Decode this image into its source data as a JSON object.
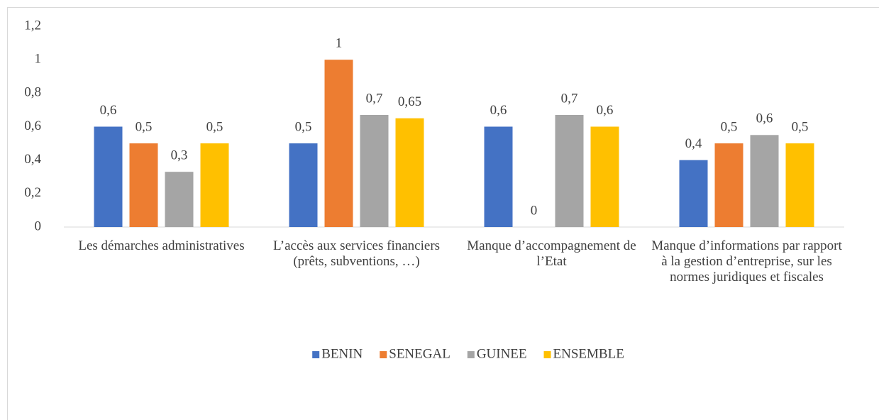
{
  "chart_data": {
    "type": "bar",
    "categories": [
      "Les démarches administratives",
      "L’accès aux services financiers (prêts, subventions, …)",
      "Manque d’accompagnement de l’Etat",
      "Manque d’informations par rapport à la gestion d’entreprise, sur les normes juridiques et fiscales"
    ],
    "series": [
      {
        "name": "BENIN",
        "color": "#4472c4",
        "values": [
          0.6,
          0.5,
          0.6,
          0.4
        ],
        "value_labels": [
          "0,6",
          "0,5",
          "0,6",
          "0,4"
        ]
      },
      {
        "name": "SENEGAL",
        "color": "#ed7d31",
        "values": [
          0.5,
          1,
          0,
          0.5
        ],
        "value_labels": [
          "0,5",
          "1",
          "0",
          "0,5"
        ]
      },
      {
        "name": "GUINEE",
        "color": "#a5a5a5",
        "values": [
          0.33,
          0.67,
          0.67,
          0.55
        ],
        "value_labels": [
          "0,3",
          "0,7",
          "0,7",
          "0,6"
        ]
      },
      {
        "name": "ENSEMBLE",
        "color": "#ffc000",
        "values": [
          0.5,
          0.65,
          0.6,
          0.5
        ],
        "value_labels": [
          "0,5",
          "0,65",
          "0,6",
          "0,5"
        ]
      }
    ],
    "ylim": [
      0,
      1.2
    ],
    "yticks": [
      0,
      {
        "value": 0.2,
        "label": "0,2"
      },
      {
        "value": 0.4,
        "label": "0,4"
      },
      {
        "value": 0.6,
        "label": "0,6"
      },
      {
        "value": 0.8,
        "label": "0,8"
      },
      1,
      {
        "value": 1.2,
        "label": "1,2"
      }
    ],
    "grid": false,
    "legend": "bottom"
  }
}
